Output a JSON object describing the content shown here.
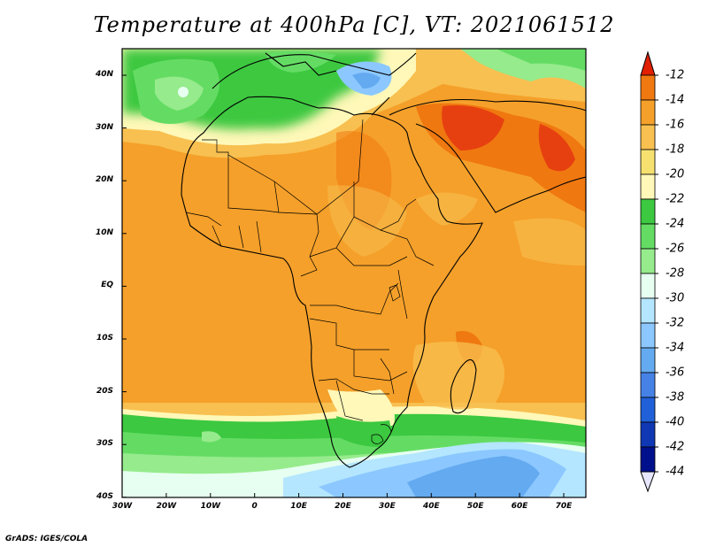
{
  "title": "Temperature at 400hPa [C], VT: 2021061512",
  "credit": "GrADS: IGES/COLA",
  "lat_ticks": [
    "40N",
    "30N",
    "20N",
    "10N",
    "EQ",
    "10S",
    "20S",
    "30S",
    "40S"
  ],
  "lon_ticks": [
    "30W",
    "20W",
    "10W",
    "0",
    "10E",
    "20E",
    "30E",
    "40E",
    "50E",
    "60E",
    "70E"
  ],
  "colorbar": {
    "levels": [
      "-12",
      "-14",
      "-16",
      "-18",
      "-20",
      "-22",
      "-24",
      "-26",
      "-28",
      "-30",
      "-32",
      "-34",
      "-36",
      "-38",
      "-40",
      "-42",
      "-44"
    ],
    "colors": [
      "#e64010",
      "#f07810",
      "#f5a02a",
      "#f8c050",
      "#f5e070",
      "#fff8b8",
      "#3cc840",
      "#64dc64",
      "#96eb8c",
      "#e6fff0",
      "#b4e6ff",
      "#8cc8ff",
      "#64aaf0",
      "#4682e6",
      "#2060d8",
      "#1038b4",
      "#00108c"
    ],
    "top_color": "#e02000",
    "bottom_color": "#e6e6ff"
  }
}
